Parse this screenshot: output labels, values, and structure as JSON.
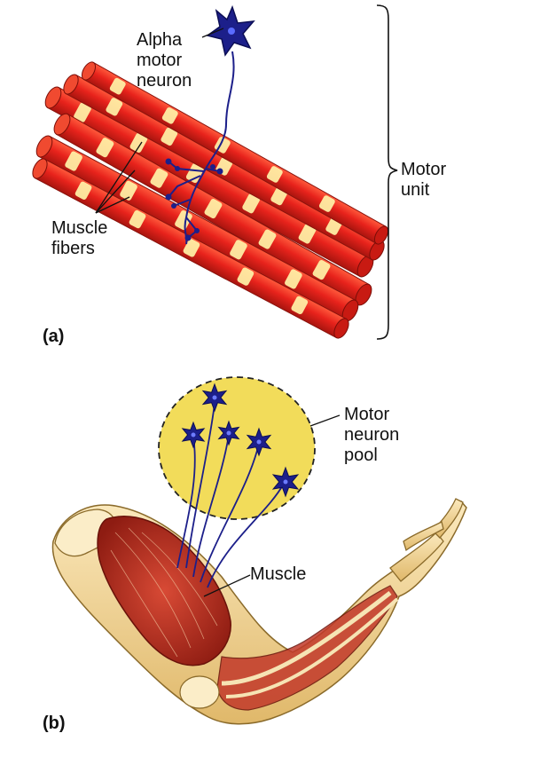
{
  "panel_a": {
    "tag": "(a)",
    "neuron_label": [
      "Alpha",
      "motor",
      "neuron"
    ],
    "fibers_label": [
      "Muscle",
      "fibers"
    ],
    "unit_label": [
      "Motor",
      "unit"
    ]
  },
  "panel_b": {
    "tag": "(b)",
    "pool_label": [
      "Motor",
      "neuron",
      "pool"
    ],
    "muscle_label": "Muscle"
  },
  "colors": {
    "fiber_red": "#e8231c",
    "fiber_band": "#fff3a8",
    "neuron_blue": "#1c1f8a",
    "pool_yellow": "#f2dc5a",
    "muscle_red": "#b8281d",
    "bone": "#f3dba0"
  },
  "icons": [
    "alpha-motor-neuron-icon",
    "motor-neuron-icon",
    "arm-muscle-illustration"
  ]
}
